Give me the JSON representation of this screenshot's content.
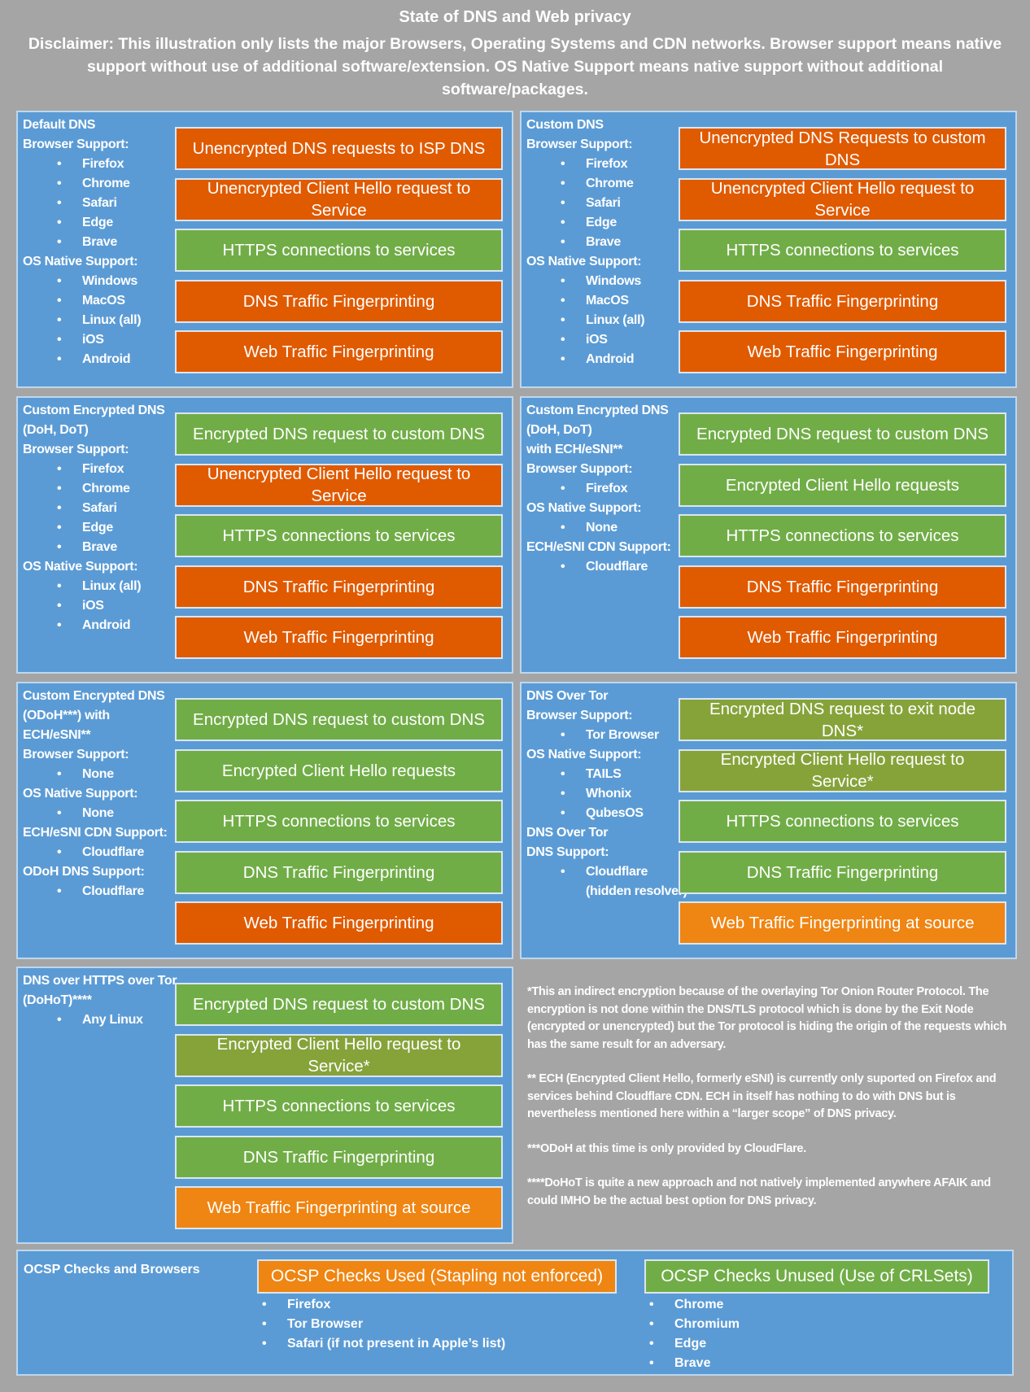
{
  "title": "State of DNS and Web privacy",
  "disclaimer": "Disclaimer: This illustration only lists the major Browsers, Operating Systems and CDN networks. Browser support means native support without use of additional software/extension. OS Native Support means native support without additional software/packages.",
  "colors": {
    "background": "#a5a5a5",
    "panel": "#5b9bd5",
    "bad": "#e05a00",
    "good": "#71ad47",
    "partial": "#86a33a",
    "source": "#ef8512"
  },
  "panels": [
    {
      "lines": [
        {
          "t": "Default DNS"
        },
        {
          "t": "Browser Support:"
        },
        {
          "t": "Firefox",
          "li": 1
        },
        {
          "t": "Chrome",
          "li": 1
        },
        {
          "t": "Safari",
          "li": 1
        },
        {
          "t": "Edge",
          "li": 1
        },
        {
          "t": "Brave",
          "li": 1
        },
        {
          "t": "OS Native Support:"
        },
        {
          "t": "Windows",
          "li": 1
        },
        {
          "t": "MacOS",
          "li": 1
        },
        {
          "t": "Linux (all)",
          "li": 1
        },
        {
          "t": "iOS",
          "li": 1
        },
        {
          "t": "Android",
          "li": 1
        }
      ],
      "boxes": [
        {
          "label": "Unencrypted DNS requests to ISP DNS",
          "status": "bad"
        },
        {
          "label": "Unencrypted Client Hello request to Service",
          "status": "bad"
        },
        {
          "label": "HTTPS connections to services",
          "status": "good"
        },
        {
          "label": "DNS Traffic Fingerprinting",
          "status": "bad"
        },
        {
          "label": "Web Traffic Fingerprinting",
          "status": "bad"
        }
      ]
    },
    {
      "lines": [
        {
          "t": "Custom DNS"
        },
        {
          "t": "Browser Support:"
        },
        {
          "t": "Firefox",
          "li": 1
        },
        {
          "t": "Chrome",
          "li": 1
        },
        {
          "t": "Safari",
          "li": 1
        },
        {
          "t": "Edge",
          "li": 1
        },
        {
          "t": "Brave",
          "li": 1
        },
        {
          "t": "OS Native Support:"
        },
        {
          "t": "Windows",
          "li": 1
        },
        {
          "t": "MacOS",
          "li": 1
        },
        {
          "t": "Linux (all)",
          "li": 1
        },
        {
          "t": "iOS",
          "li": 1
        },
        {
          "t": "Android",
          "li": 1
        }
      ],
      "boxes": [
        {
          "label": "Unencrypted DNS Requests to custom DNS",
          "status": "bad"
        },
        {
          "label": "Unencrypted Client Hello request to Service",
          "status": "bad"
        },
        {
          "label": "HTTPS connections to services",
          "status": "good"
        },
        {
          "label": "DNS Traffic Fingerprinting",
          "status": "bad"
        },
        {
          "label": "Web Traffic Fingerprinting",
          "status": "bad"
        }
      ]
    },
    {
      "lines": [
        {
          "t": "Custom Encrypted DNS"
        },
        {
          "t": "(DoH, DoT)"
        },
        {
          "t": "Browser Support:"
        },
        {
          "t": "Firefox",
          "li": 1
        },
        {
          "t": "Chrome",
          "li": 1
        },
        {
          "t": "Safari",
          "li": 1
        },
        {
          "t": "Edge",
          "li": 1
        },
        {
          "t": "Brave",
          "li": 1
        },
        {
          "t": "OS Native Support:"
        },
        {
          "t": "Linux (all)",
          "li": 1
        },
        {
          "t": "iOS",
          "li": 1
        },
        {
          "t": "Android",
          "li": 1
        }
      ],
      "boxes": [
        {
          "label": "Encrypted DNS request to custom DNS",
          "status": "good"
        },
        {
          "label": "Unencrypted Client Hello request to Service",
          "status": "bad"
        },
        {
          "label": "HTTPS connections to services",
          "status": "good"
        },
        {
          "label": "DNS Traffic Fingerprinting",
          "status": "bad"
        },
        {
          "label": "Web Traffic Fingerprinting",
          "status": "bad"
        }
      ]
    },
    {
      "lines": [
        {
          "t": "Custom Encrypted DNS"
        },
        {
          "t": "(DoH, DoT)"
        },
        {
          "t": "with ECH/eSNI**"
        },
        {
          "t": "Browser Support:"
        },
        {
          "t": "Firefox",
          "li": 1
        },
        {
          "t": "OS Native Support:"
        },
        {
          "t": "None",
          "li": 1
        },
        {
          "t": "ECH/eSNI CDN Support:"
        },
        {
          "t": "Cloudflare",
          "li": 1
        }
      ],
      "boxes": [
        {
          "label": "Encrypted DNS request to custom DNS",
          "status": "good"
        },
        {
          "label": "Encrypted Client Hello requests",
          "status": "good"
        },
        {
          "label": "HTTPS connections to services",
          "status": "good"
        },
        {
          "label": "DNS Traffic Fingerprinting",
          "status": "bad"
        },
        {
          "label": "Web Traffic Fingerprinting",
          "status": "bad"
        }
      ]
    },
    {
      "lines": [
        {
          "t": "Custom Encrypted DNS"
        },
        {
          "t": "(ODoH***) with"
        },
        {
          "t": "ECH/eSNI**"
        },
        {
          "t": "Browser Support:"
        },
        {
          "t": "None",
          "li": 1
        },
        {
          "t": "OS Native Support:"
        },
        {
          "t": "None",
          "li": 1
        },
        {
          "t": "ECH/eSNI CDN Support:"
        },
        {
          "t": "Cloudflare",
          "li": 1
        },
        {
          "t": "ODoH DNS Support:"
        },
        {
          "t": "Cloudflare",
          "li": 1
        }
      ],
      "boxes": [
        {
          "label": "Encrypted DNS request to custom DNS",
          "status": "good"
        },
        {
          "label": "Encrypted Client Hello requests",
          "status": "good"
        },
        {
          "label": "HTTPS connections to services",
          "status": "good"
        },
        {
          "label": "DNS Traffic Fingerprinting",
          "status": "good"
        },
        {
          "label": "Web Traffic Fingerprinting",
          "status": "bad"
        }
      ]
    },
    {
      "lines": [
        {
          "t": "DNS Over Tor"
        },
        {
          "t": "Browser Support:"
        },
        {
          "t": "Tor Browser",
          "li": 1
        },
        {
          "t": "OS Native Support:"
        },
        {
          "t": "TAILS",
          "li": 1
        },
        {
          "t": "Whonix",
          "li": 1
        },
        {
          "t": "QubesOS",
          "li": 1
        },
        {
          "t": "DNS Over Tor"
        },
        {
          "t": "DNS Support:"
        },
        {
          "t": "Cloudflare",
          "li": 1
        },
        {
          "t": "(hidden resolver)",
          "deep": 1
        }
      ],
      "boxes": [
        {
          "label": "Encrypted DNS request to exit node DNS*",
          "status": "partial"
        },
        {
          "label": "Encrypted Client Hello request to Service*",
          "status": "partial"
        },
        {
          "label": "HTTPS connections to services",
          "status": "good"
        },
        {
          "label": "DNS Traffic Fingerprinting",
          "status": "good"
        },
        {
          "label": "Web Traffic Fingerprinting at source",
          "status": "source"
        }
      ]
    },
    {
      "lines": [
        {
          "t": "DNS over HTTPS over Tor"
        },
        {
          "t": "(DoHoT)****"
        },
        {
          "t": "Any Linux",
          "li": 1
        }
      ],
      "boxes": [
        {
          "label": "Encrypted DNS request to custom DNS",
          "status": "good"
        },
        {
          "label": "Encrypted Client Hello request to Service*",
          "status": "partial"
        },
        {
          "label": "HTTPS connections to services",
          "status": "good"
        },
        {
          "label": "DNS Traffic Fingerprinting",
          "status": "good"
        },
        {
          "label": "Web Traffic Fingerprinting at source",
          "status": "source"
        }
      ]
    }
  ],
  "notes": [
    "*This an indirect encryption because of the overlaying Tor Onion Router Protocol. The encryption is not done within the DNS/TLS protocol which is done by the Exit Node (encrypted or unencrypted) but the Tor protocol is hiding the origin of the requests which has the same result for an adversary.",
    "** ECH (Encrypted Client Hello, formerly eSNI) is currently only suported on Firefox and services behind Cloudflare CDN. ECH in itself has nothing to do with DNS but is nevertheless mentioned here within a “larger scope” of DNS privacy.",
    "***ODoH at this time is only provided by CloudFlare.",
    "****DoHoT is quite a new approach and not natively implemented anywhere AFAIK and could IMHO be the actual best option for DNS privacy."
  ],
  "ocsp": {
    "title": "OCSP Checks and Browsers",
    "used": {
      "label": "OCSP Checks Used (Stapling not enforced)",
      "items": [
        "Firefox",
        "Tor Browser",
        "Safari (if not present in Apple’s list)"
      ]
    },
    "unused": {
      "label": "OCSP Checks Unused (Use of CRLSets)",
      "items": [
        "Chrome",
        "Chromium",
        "Edge",
        "Brave"
      ]
    }
  }
}
